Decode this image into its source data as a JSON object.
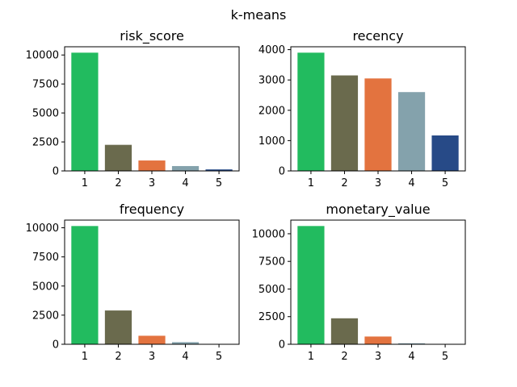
{
  "figure": {
    "suptitle": "k-means"
  },
  "colors": [
    "#22bb5f",
    "#6a6a4d",
    "#e3733f",
    "#84a2ac",
    "#274a87"
  ],
  "chart_data": [
    {
      "type": "bar",
      "title": "risk_score",
      "categories": [
        "1",
        "2",
        "3",
        "4",
        "5"
      ],
      "values": [
        10200,
        2250,
        900,
        420,
        130
      ],
      "ylim": [
        0,
        10710
      ],
      "yticks": [
        0,
        2500,
        5000,
        7500,
        10000
      ]
    },
    {
      "type": "bar",
      "title": "recency",
      "categories": [
        "1",
        "2",
        "3",
        "4",
        "5"
      ],
      "values": [
        3900,
        3150,
        3050,
        2600,
        1170
      ],
      "ylim": [
        0,
        4095
      ],
      "yticks": [
        0,
        1000,
        2000,
        3000,
        4000
      ]
    },
    {
      "type": "bar",
      "title": "frequency",
      "categories": [
        "1",
        "2",
        "3",
        "4",
        "5"
      ],
      "values": [
        10150,
        2900,
        730,
        180,
        15
      ],
      "ylim": [
        0,
        10658
      ],
      "yticks": [
        0,
        2500,
        5000,
        7500,
        10000
      ]
    },
    {
      "type": "bar",
      "title": "monetary_value",
      "categories": [
        "1",
        "2",
        "3",
        "4",
        "5"
      ],
      "values": [
        10700,
        2350,
        700,
        90,
        20
      ],
      "ylim": [
        0,
        11235
      ],
      "yticks": [
        0,
        2500,
        5000,
        7500,
        10000
      ]
    }
  ]
}
